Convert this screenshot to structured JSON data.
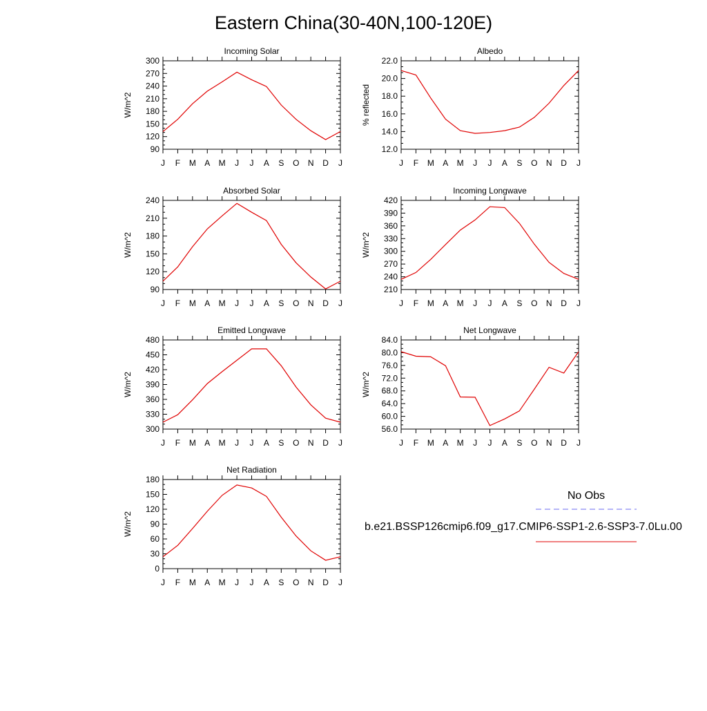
{
  "figure_title": "Eastern China(30-40N,100-120E)",
  "legend": {
    "obs_label": "No Obs",
    "obs_color": "#6b6bf0",
    "model_label": "b.e21.BSSP126cmip6.f09_g17.CMIP6-SSP1-2.6-SSP3-7.0Lu.00",
    "model_color": "#e00000"
  },
  "chart_data": [
    {
      "type": "line",
      "title": "Incoming Solar",
      "ylabel": "W/m^2",
      "ylim": [
        90,
        300
      ],
      "yticks": [
        "90",
        "120",
        "150",
        "180",
        "210",
        "240",
        "270",
        "300"
      ],
      "categories": [
        "J",
        "F",
        "M",
        "A",
        "M",
        "J",
        "J",
        "A",
        "S",
        "O",
        "N",
        "D",
        "J"
      ],
      "series": [
        {
          "values": [
            132,
            161,
            198,
            228,
            250,
            273,
            255,
            239,
            195,
            161,
            134,
            113,
            132
          ]
        }
      ]
    },
    {
      "type": "line",
      "title": "Albedo",
      "ylabel": "% reflected",
      "ylim": [
        12.0,
        22.0
      ],
      "yticks": [
        "12.0",
        "14.0",
        "16.0",
        "18.0",
        "20.0",
        "22.0"
      ],
      "categories": [
        "J",
        "F",
        "M",
        "A",
        "M",
        "J",
        "J",
        "A",
        "S",
        "O",
        "N",
        "D",
        "J"
      ],
      "series": [
        {
          "values": [
            20.9,
            20.4,
            17.8,
            15.4,
            14.1,
            13.8,
            13.9,
            14.1,
            14.5,
            15.6,
            17.2,
            19.2,
            20.9
          ]
        }
      ]
    },
    {
      "type": "line",
      "title": "Absorbed Solar",
      "ylabel": "W/m^2",
      "ylim": [
        90,
        240
      ],
      "yticks": [
        "90",
        "120",
        "150",
        "180",
        "210",
        "240"
      ],
      "categories": [
        "J",
        "F",
        "M",
        "A",
        "M",
        "J",
        "J",
        "A",
        "S",
        "O",
        "N",
        "D",
        "J"
      ],
      "series": [
        {
          "values": [
            104,
            128,
            162,
            192,
            214,
            235,
            220,
            206,
            166,
            135,
            111,
            91,
            104
          ]
        }
      ]
    },
    {
      "type": "line",
      "title": "Incoming Longwave",
      "ylabel": "W/m^2",
      "ylim": [
        210,
        420
      ],
      "yticks": [
        "210",
        "240",
        "270",
        "300",
        "330",
        "360",
        "390",
        "420"
      ],
      "categories": [
        "J",
        "F",
        "M",
        "A",
        "M",
        "J",
        "J",
        "A",
        "S",
        "O",
        "N",
        "D",
        "J"
      ],
      "series": [
        {
          "values": [
            234,
            250,
            281,
            316,
            350,
            374,
            405,
            403,
            366,
            317,
            274,
            248,
            234
          ]
        }
      ]
    },
    {
      "type": "line",
      "title": "Emitted Longwave",
      "ylabel": "W/m^2",
      "ylim": [
        300,
        480
      ],
      "yticks": [
        "300",
        "330",
        "360",
        "390",
        "420",
        "450",
        "480"
      ],
      "categories": [
        "J",
        "F",
        "M",
        "A",
        "M",
        "J",
        "J",
        "A",
        "S",
        "O",
        "N",
        "D",
        "J"
      ],
      "series": [
        {
          "values": [
            314,
            329,
            359,
            392,
            416,
            439,
            462,
            462,
            428,
            385,
            349,
            322,
            314
          ]
        }
      ]
    },
    {
      "type": "line",
      "title": "Net Longwave",
      "ylabel": "W/m^2",
      "ylim": [
        56.0,
        84.0
      ],
      "yticks": [
        "56.0",
        "60.0",
        "64.0",
        "68.0",
        "72.0",
        "76.0",
        "80.0",
        "84.0"
      ],
      "categories": [
        "J",
        "F",
        "M",
        "A",
        "M",
        "J",
        "J",
        "A",
        "S",
        "O",
        "N",
        "D",
        "J"
      ],
      "series": [
        {
          "values": [
            80.3,
            78.9,
            78.7,
            75.9,
            66.1,
            66.0,
            57.1,
            59.2,
            61.7,
            68.5,
            75.4,
            73.6,
            80.3
          ]
        }
      ]
    },
    {
      "type": "line",
      "title": "Net Radiation",
      "ylabel": "W/m^2",
      "ylim": [
        0,
        180
      ],
      "yticks": [
        "0",
        "30",
        "60",
        "90",
        "120",
        "150",
        "180"
      ],
      "categories": [
        "J",
        "F",
        "M",
        "A",
        "M",
        "J",
        "J",
        "A",
        "S",
        "O",
        "N",
        "D",
        "J"
      ],
      "series": [
        {
          "values": [
            24,
            47,
            81,
            116,
            148,
            169,
            163,
            146,
            104,
            66,
            36,
            17,
            24
          ]
        }
      ]
    }
  ]
}
